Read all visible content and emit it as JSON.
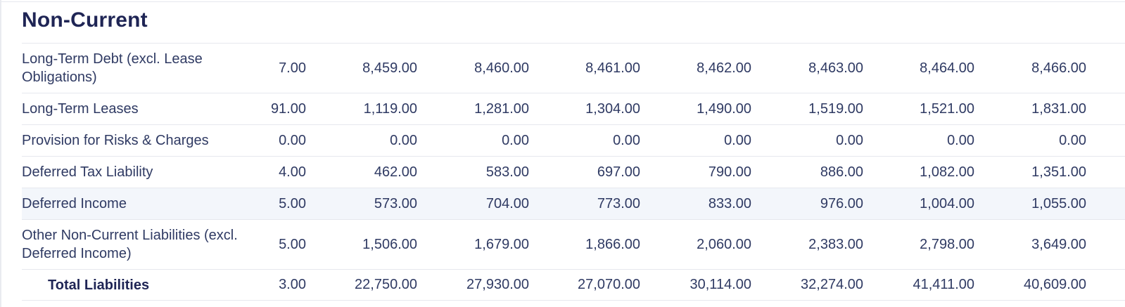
{
  "section": {
    "title": "Non-Current"
  },
  "rows": [
    {
      "label": "Long-Term Debt (excl. Lease Obligations)",
      "values": [
        "7.00",
        "8,459.00",
        "8,460.00",
        "8,461.00",
        "8,462.00",
        "8,463.00",
        "8,464.00",
        "8,466.00"
      ]
    },
    {
      "label": "Long-Term Leases",
      "values": [
        "91.00",
        "1,119.00",
        "1,281.00",
        "1,304.00",
        "1,490.00",
        "1,519.00",
        "1,521.00",
        "1,831.00"
      ]
    },
    {
      "label": "Provision for Risks & Charges",
      "values": [
        "0.00",
        "0.00",
        "0.00",
        "0.00",
        "0.00",
        "0.00",
        "0.00",
        "0.00"
      ]
    },
    {
      "label": "Deferred Tax Liability",
      "values": [
        "4.00",
        "462.00",
        "583.00",
        "697.00",
        "790.00",
        "886.00",
        "1,082.00",
        "1,351.00"
      ]
    },
    {
      "label": "Deferred Income",
      "values": [
        "5.00",
        "573.00",
        "704.00",
        "773.00",
        "833.00",
        "976.00",
        "1,004.00",
        "1,055.00"
      ]
    },
    {
      "label": "Other Non-Current Liabilities (excl. Deferred Income)",
      "values": [
        "5.00",
        "1,506.00",
        "1,679.00",
        "1,866.00",
        "2,060.00",
        "2,383.00",
        "2,798.00",
        "3,649.00"
      ]
    },
    {
      "label": "Total Liabilities",
      "values": [
        "3.00",
        "22,750.00",
        "27,930.00",
        "27,070.00",
        "30,114.00",
        "32,274.00",
        "41,411.00",
        "40,609.00"
      ]
    }
  ]
}
